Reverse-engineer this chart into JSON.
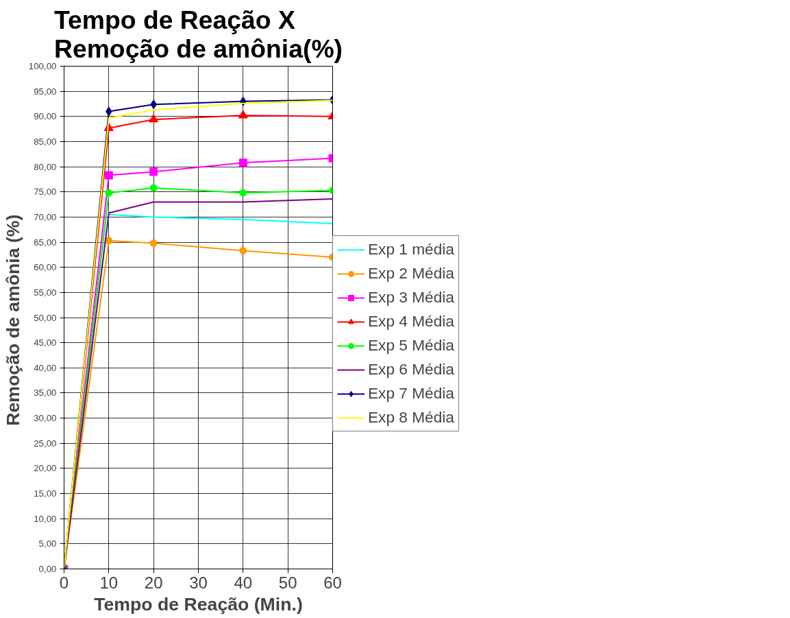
{
  "chart_data": {
    "type": "line",
    "title": "Tempo de Reação X Remoção de amônia(%)",
    "xlabel": "Tempo de Reação (Min.)",
    "ylabel": "Remoção de amônia  (%)",
    "x": [
      0,
      10,
      20,
      40,
      60
    ],
    "xlim": [
      0,
      60
    ],
    "xticks": [
      0,
      10,
      20,
      30,
      40,
      50,
      60
    ],
    "ylim": [
      0,
      100
    ],
    "yticks": [
      {
        "value": 0,
        "label": "0,00"
      },
      {
        "value": 5,
        "label": "5,00"
      },
      {
        "value": 10,
        "label": "10,00"
      },
      {
        "value": 15,
        "label": "15,00"
      },
      {
        "value": 20,
        "label": "20,00"
      },
      {
        "value": 25,
        "label": "25,00"
      },
      {
        "value": 30,
        "label": "30,00"
      },
      {
        "value": 35,
        "label": "35,00"
      },
      {
        "value": 40,
        "label": "40,00"
      },
      {
        "value": 45,
        "label": "45,00"
      },
      {
        "value": 50,
        "label": "50,00"
      },
      {
        "value": 55,
        "label": "55,00"
      },
      {
        "value": 60,
        "label": "60,00"
      },
      {
        "value": 65,
        "label": "65,00"
      },
      {
        "value": 70,
        "label": "70,00"
      },
      {
        "value": 75,
        "label": "75,00"
      },
      {
        "value": 80,
        "label": "80,00"
      },
      {
        "value": 85,
        "label": "85,00"
      },
      {
        "value": 90,
        "label": "90,00"
      },
      {
        "value": 95,
        "label": "95,00"
      },
      {
        "value": 100,
        "label": "100,00"
      }
    ],
    "grid": true,
    "legend": "right",
    "series": [
      {
        "name": "Exp 1 média",
        "color": "#00ffff",
        "marker": "none",
        "values": [
          0,
          70.5,
          70,
          69.5,
          68.7
        ]
      },
      {
        "name": "Exp 2 Média",
        "color": "#ff9900",
        "marker": "circle",
        "values": [
          0,
          65.3,
          64.8,
          63.3,
          62
        ]
      },
      {
        "name": "Exp 3 Média",
        "color": "#ff00ff",
        "marker": "square",
        "values": [
          0,
          78.3,
          79,
          80.8,
          81.7
        ]
      },
      {
        "name": "Exp 4 Média",
        "color": "#ff0000",
        "marker": "triangle",
        "values": [
          0,
          87.7,
          89.4,
          90.2,
          90
        ]
      },
      {
        "name": "Exp 5 Média",
        "color": "#00ff00",
        "marker": "circle",
        "values": [
          0,
          74.8,
          75.8,
          74.8,
          75.3
        ]
      },
      {
        "name": "Exp 6 Média",
        "color": "#800080",
        "marker": "none",
        "values": [
          0,
          70.8,
          73,
          73,
          73.6
        ]
      },
      {
        "name": "Exp 7 Média",
        "color": "#000080",
        "marker": "diamond",
        "values": [
          0,
          91,
          92.4,
          93,
          93.3
        ]
      },
      {
        "name": "Exp 8 Média",
        "color": "#ffff00",
        "marker": "none",
        "values": [
          0,
          89.7,
          91.3,
          92.6,
          93.2
        ]
      }
    ]
  }
}
